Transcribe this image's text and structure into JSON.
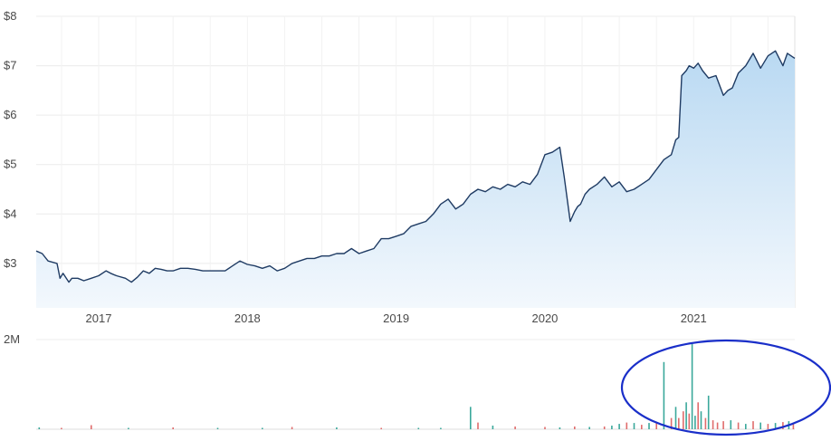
{
  "chart_data": [
    {
      "type": "area",
      "title": "",
      "xlabel": "",
      "ylabel": "",
      "x_ticks": [
        "2017",
        "2018",
        "2019",
        "2020",
        "2021"
      ],
      "x_tick_values": [
        2017.0,
        2018.0,
        2019.0,
        2020.0,
        2021.0
      ],
      "y_ticks": [
        "$3",
        "$4",
        "$5",
        "$6",
        "$7",
        "$8"
      ],
      "y_tick_values": [
        3,
        4,
        5,
        6,
        7,
        8
      ],
      "xlim": [
        2016.58,
        2021.68
      ],
      "ylim": [
        2.1,
        8
      ],
      "grid": true,
      "line_color": "#1f3b63",
      "fill_color_top": "#b9d9f2",
      "fill_color_bottom": "#f3f8fd",
      "series": [
        {
          "x": [
            2016.58,
            2016.62,
            2016.66,
            2016.72,
            2016.74,
            2016.76,
            2016.8,
            2016.82,
            2016.86,
            2016.9,
            2016.95,
            2017.0,
            2017.05,
            2017.08,
            2017.12,
            2017.18,
            2017.22,
            2017.26,
            2017.3,
            2017.34,
            2017.38,
            2017.42,
            2017.46,
            2017.5,
            2017.55,
            2017.6,
            2017.65,
            2017.7,
            2017.75,
            2017.8,
            2017.85,
            2017.9,
            2017.95,
            2018.0,
            2018.05,
            2018.1,
            2018.15,
            2018.2,
            2018.25,
            2018.3,
            2018.35,
            2018.4,
            2018.45,
            2018.5,
            2018.55,
            2018.6,
            2018.65,
            2018.7,
            2018.75,
            2018.8,
            2018.85,
            2018.9,
            2018.95,
            2019.0,
            2019.05,
            2019.1,
            2019.15,
            2019.2,
            2019.25,
            2019.3,
            2019.35,
            2019.4,
            2019.45,
            2019.5,
            2019.55,
            2019.6,
            2019.65,
            2019.7,
            2019.75,
            2019.8,
            2019.85,
            2019.9,
            2019.95,
            2020.0,
            2020.05,
            2020.1,
            2020.13,
            2020.15,
            2020.17,
            2020.2,
            2020.22,
            2020.24,
            2020.27,
            2020.3,
            2020.35,
            2020.4,
            2020.45,
            2020.5,
            2020.55,
            2020.6,
            2020.65,
            2020.7,
            2020.75,
            2020.8,
            2020.85,
            2020.88,
            2020.9,
            2020.92,
            2020.95,
            2020.97,
            2021.0,
            2021.03,
            2021.06,
            2021.1,
            2021.15,
            2021.2,
            2021.23,
            2021.26,
            2021.3,
            2021.35,
            2021.4,
            2021.45,
            2021.5,
            2021.55,
            2021.6,
            2021.63,
            2021.68
          ],
          "y": [
            3.25,
            3.2,
            3.05,
            3.0,
            2.7,
            2.8,
            2.62,
            2.7,
            2.7,
            2.65,
            2.7,
            2.75,
            2.85,
            2.8,
            2.75,
            2.7,
            2.62,
            2.72,
            2.85,
            2.8,
            2.9,
            2.88,
            2.85,
            2.85,
            2.9,
            2.9,
            2.88,
            2.85,
            2.85,
            2.85,
            2.85,
            2.95,
            3.05,
            2.98,
            2.95,
            2.9,
            2.95,
            2.85,
            2.9,
            3.0,
            3.05,
            3.1,
            3.1,
            3.15,
            3.15,
            3.2,
            3.2,
            3.3,
            3.2,
            3.25,
            3.3,
            3.5,
            3.5,
            3.55,
            3.6,
            3.75,
            3.8,
            3.85,
            4.0,
            4.2,
            4.3,
            4.1,
            4.2,
            4.4,
            4.5,
            4.45,
            4.55,
            4.5,
            4.6,
            4.55,
            4.65,
            4.6,
            4.8,
            5.2,
            5.25,
            5.35,
            4.75,
            4.3,
            3.85,
            4.05,
            4.15,
            4.2,
            4.4,
            4.5,
            4.6,
            4.75,
            4.55,
            4.65,
            4.45,
            4.5,
            4.6,
            4.7,
            4.9,
            5.1,
            5.2,
            5.5,
            5.55,
            6.8,
            6.9,
            7.0,
            6.95,
            7.05,
            6.9,
            6.75,
            6.8,
            6.4,
            6.5,
            6.55,
            6.85,
            7.0,
            7.25,
            6.95,
            7.2,
            7.3,
            7.0,
            7.25,
            7.15
          ]
        }
      ]
    },
    {
      "type": "bar",
      "title": "",
      "y_ticks": [
        "2M"
      ],
      "y_tick_values": [
        2000000
      ],
      "ylim": [
        0,
        2000000
      ],
      "up_color": "#3aa89b",
      "down_color": "#e06c6c",
      "annotation_color": "#1a2fc9",
      "x": [
        2016.6,
        2016.75,
        2016.95,
        2017.2,
        2017.5,
        2017.8,
        2018.1,
        2018.3,
        2018.6,
        2018.9,
        2019.15,
        2019.3,
        2019.5,
        2019.55,
        2019.65,
        2019.8,
        2020.0,
        2020.1,
        2020.2,
        2020.3,
        2020.4,
        2020.45,
        2020.5,
        2020.55,
        2020.6,
        2020.65,
        2020.7,
        2020.75,
        2020.8,
        2020.85,
        2020.88,
        2020.9,
        2020.93,
        2020.95,
        2020.97,
        2020.99,
        2021.01,
        2021.03,
        2021.05,
        2021.08,
        2021.1,
        2021.13,
        2021.16,
        2021.2,
        2021.25,
        2021.3,
        2021.35,
        2021.4,
        2021.45,
        2021.5,
        2021.55,
        2021.6,
        2021.64,
        2021.67
      ],
      "values": [
        40000,
        30000,
        90000,
        30000,
        40000,
        30000,
        30000,
        50000,
        40000,
        30000,
        30000,
        30000,
        500000,
        150000,
        80000,
        60000,
        50000,
        40000,
        60000,
        50000,
        60000,
        80000,
        120000,
        150000,
        140000,
        100000,
        140000,
        150000,
        1500000,
        250000,
        500000,
        250000,
        400000,
        600000,
        350000,
        1900000,
        300000,
        600000,
        400000,
        250000,
        750000,
        200000,
        150000,
        180000,
        200000,
        150000,
        120000,
        180000,
        150000,
        120000,
        140000,
        160000,
        180000,
        120000
      ],
      "direction": [
        "up",
        "down",
        "down",
        "up",
        "down",
        "up",
        "up",
        "down",
        "up",
        "down",
        "up",
        "up",
        "up",
        "down",
        "up",
        "down",
        "down",
        "up",
        "down",
        "up",
        "down",
        "up",
        "up",
        "down",
        "up",
        "down",
        "up",
        "down",
        "up",
        "down",
        "up",
        "down",
        "down",
        "up",
        "down",
        "up",
        "up",
        "down",
        "up",
        "down",
        "up",
        "down",
        "down",
        "down",
        "up",
        "down",
        "up",
        "down",
        "up",
        "down",
        "up",
        "down",
        "up",
        "down"
      ]
    }
  ]
}
